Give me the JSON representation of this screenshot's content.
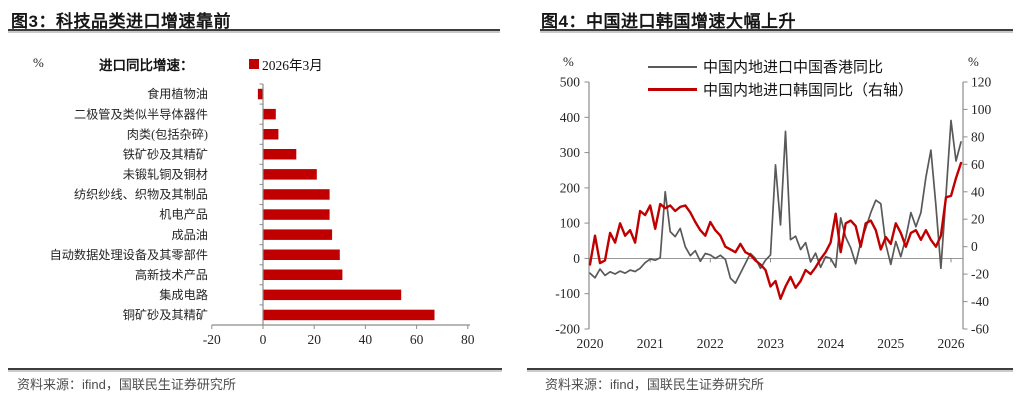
{
  "colors": {
    "red": "#C00000",
    "gray_line": "#595959",
    "axis": "#8c8c8c",
    "zero_line": "#8a8a8a",
    "chart_text": "#262626",
    "rule": "#3d3d3d",
    "source_text": "#4d4d4d"
  },
  "fig3": {
    "title": "图3：科技品类进口增速靠前",
    "unit": "%",
    "legend_label": "进口同比增速：",
    "legend_series": "2026年3月",
    "source": "资料来源：ifind，国联民生证券研究所"
  },
  "fig4": {
    "title": "图4：中国进口韩国增速大幅上升",
    "unit_left": "%",
    "unit_right": "%",
    "source": "资料来源：ifind，国联民生证券研究所"
  },
  "chart_data": [
    {
      "type": "bar",
      "orientation": "horizontal",
      "title": "科技品类进口增速靠前",
      "series_name": "2026年3月",
      "unit": "%",
      "categories": [
        "食用植物油",
        "二极管及类似半导体器件",
        "肉类(包括杂碎)",
        "铁矿砂及其精矿",
        "未锻轧铜及铜材",
        "纺织纱线、织物及其制品",
        "机电产品",
        "成品油",
        "自动数据处理设备及其零部件",
        "高新技术产品",
        "集成电路",
        "铜矿砂及其精矿"
      ],
      "values": [
        -2,
        5,
        6,
        13,
        21,
        26,
        26,
        27,
        30,
        31,
        54,
        67
      ],
      "xlim": [
        -20,
        80
      ],
      "xticks": [
        -20,
        0,
        20,
        40,
        60,
        80
      ],
      "bar_color": "#C00000",
      "grid": false
    },
    {
      "type": "line",
      "title": "中国进口韩国增速大幅上升",
      "frequency": "monthly",
      "x_start": "2020-01",
      "x_end": "2026-03",
      "x_tick_labels": [
        "2020",
        "2021",
        "2022",
        "2023",
        "2024",
        "2025",
        "2026"
      ],
      "y_left": {
        "unit": "%",
        "min": -200,
        "max": 500,
        "ticks": [
          500,
          400,
          300,
          200,
          100,
          0,
          -100,
          -200
        ]
      },
      "y_right": {
        "unit": "%",
        "min": -60,
        "max": 120,
        "ticks": [
          120,
          100,
          80,
          60,
          40,
          20,
          0,
          -20,
          -40,
          -60
        ]
      },
      "legend_position": "top",
      "grid": false,
      "series": [
        {
          "name": "中国内地进口中国香港同比",
          "axis": "left",
          "color": "#595959",
          "values": [
            -42,
            -55,
            -30,
            -48,
            -38,
            -44,
            -36,
            -42,
            -33,
            -37,
            -28,
            -12,
            -2,
            -5,
            2,
            189,
            76,
            62,
            85,
            33,
            8,
            22,
            -8,
            14,
            10,
            0,
            9,
            -3,
            -56,
            -70,
            -42,
            -14,
            14,
            0,
            -28,
            -5,
            10,
            265,
            95,
            360,
            53,
            63,
            25,
            45,
            -10,
            15,
            -25,
            5,
            0,
            -25,
            115,
            60,
            30,
            -15,
            45,
            85,
            130,
            165,
            155,
            40,
            -17,
            48,
            5,
            60,
            130,
            90,
            130,
            230,
            307,
            150,
            -28,
            180,
            391,
            276,
            330
          ]
        },
        {
          "name": "中国内地进口韩国同比（右轴）",
          "axis": "right",
          "color": "#C00000",
          "values": [
            -13,
            8,
            -12,
            -10,
            10,
            3,
            17,
            8,
            12,
            3,
            26,
            23,
            30,
            13,
            31,
            28,
            30,
            26,
            29,
            30,
            25,
            18,
            12,
            8,
            18,
            12,
            8,
            0,
            -2,
            -4,
            2,
            -4,
            -6,
            -10,
            -13,
            -17,
            -29,
            -25,
            -38,
            -29,
            -22,
            -30,
            -25,
            -17,
            -20,
            -15,
            -9,
            -4,
            3,
            24,
            -4,
            17,
            19,
            15,
            0,
            17,
            19,
            12,
            -2,
            7,
            2,
            17,
            10,
            0,
            10,
            12,
            5,
            12,
            5,
            0,
            8,
            36,
            37,
            50,
            61
          ]
        }
      ]
    }
  ]
}
